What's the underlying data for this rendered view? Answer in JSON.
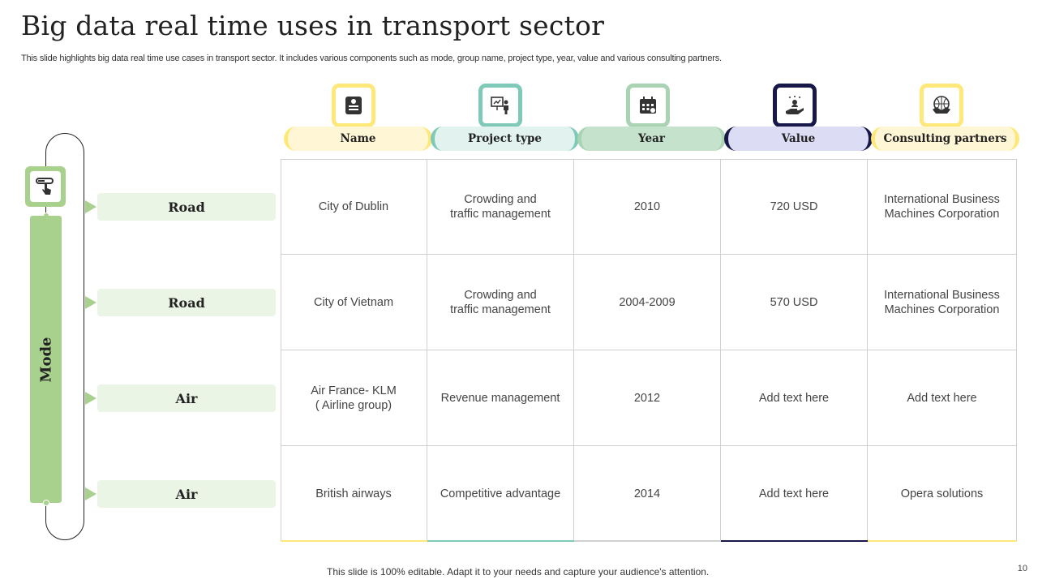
{
  "title": "Big data real time uses in transport sector",
  "subtitle": "This slide highlights big data real time use cases in transport sector. It includes various components such as mode, group name, project type, year, value and various consulting partners.",
  "mode_label": "Mode",
  "columns": [
    {
      "label": "Name",
      "icon": "id-card-icon",
      "color": "#ffe87a",
      "fill": "#fff6d5"
    },
    {
      "label": "Project type",
      "icon": "presentation-icon",
      "color": "#7fc9b8",
      "fill": "#e2f3ef"
    },
    {
      "label": "Year",
      "icon": "calendar-icon",
      "color": "#a9d3b3",
      "fill": "#c5e3cc"
    },
    {
      "label": "Value",
      "icon": "hand-money-icon",
      "color": "#17174a",
      "fill": "#dcdcf4"
    },
    {
      "label": "Consulting partners",
      "icon": "handshake-icon",
      "color": "#ffe87a",
      "fill": "#fff6d5"
    }
  ],
  "rows": [
    {
      "mode": "Road",
      "cells": [
        "City of Dublin",
        "Crowding and\ntraffic management",
        "2010",
        "720 USD",
        "International  Business\nMachines Corporation"
      ]
    },
    {
      "mode": "Road",
      "cells": [
        "City of Vietnam",
        "Crowding and\ntraffic management",
        "2004-2009",
        "570 USD",
        "International  Business\nMachines Corporation"
      ]
    },
    {
      "mode": "Air",
      "cells": [
        "Air France- KLM\n( Airline group)",
        "Revenue management",
        "2012",
        "Add text here",
        "Add text here"
      ]
    },
    {
      "mode": "Air",
      "cells": [
        "British airways",
        "Competitive advantage",
        "2014",
        "Add text here",
        "Opera solutions"
      ]
    }
  ],
  "footer": "This slide is 100% editable. Adapt it to your needs and capture your audience's attention.",
  "page_number": "10",
  "colors": {
    "green": "#a9d18e",
    "light_green": "#ebf5e6"
  }
}
